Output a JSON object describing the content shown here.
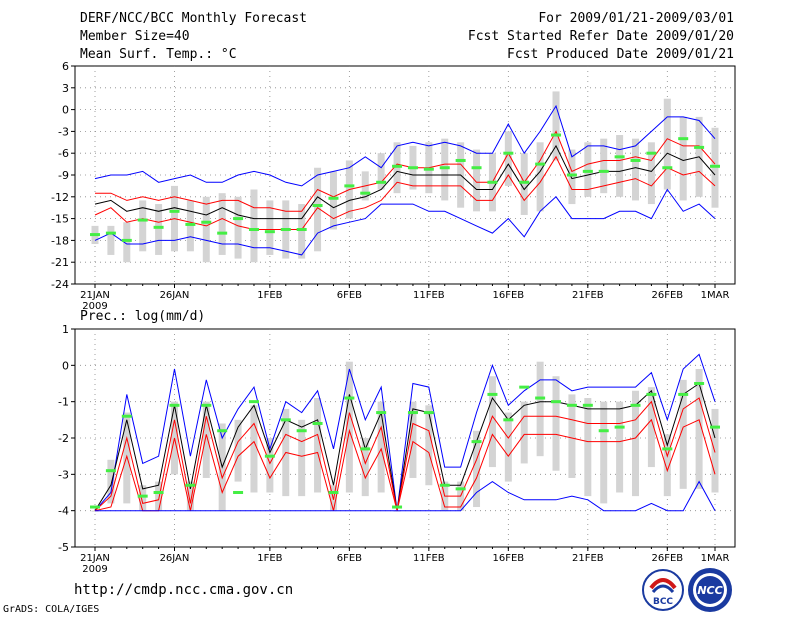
{
  "header": {
    "title": "DERF/NCC/BCC Monthly Forecast",
    "member_size": "Member Size=40",
    "var1": "Mean Surf. Temp.: °C",
    "period": "For 2009/01/21-2009/03/01",
    "started": "Fcst Started Refer Date 2009/01/20",
    "produced": "Fcst Produced Date 2009/01/21"
  },
  "panel2_title": "Prec.: log(mm/d)",
  "footer": {
    "url": "http://cmdp.ncc.cma.gov.cn",
    "credit": "GrADS: COLA/IGES",
    "logo1_text": "BCC",
    "logo2_text": "NCC"
  },
  "chart_data": [
    {
      "type": "line",
      "title": "Mean Surf. Temp.: °C",
      "x_tick_labels": [
        "21JAN",
        "26JAN",
        "1FEB",
        "6FEB",
        "11FEB",
        "16FEB",
        "21FEB",
        "26FEB",
        "1MAR"
      ],
      "x_tick_days": [
        0,
        5,
        11,
        16,
        21,
        26,
        31,
        36,
        39
      ],
      "x_year_label": "2009",
      "ylim": [
        -24,
        6
      ],
      "yticks": [
        6,
        3,
        0,
        -3,
        -6,
        -9,
        -12,
        -15,
        -18,
        -21,
        -24
      ],
      "series": [
        {
          "name": "max",
          "color": "#0000ff",
          "values": [
            -9.5,
            -9,
            -9,
            -8.5,
            -10,
            -9.5,
            -9,
            -10,
            -10,
            -9,
            -8.5,
            -9,
            -10,
            -10.5,
            -9,
            -8.5,
            -8,
            -6.5,
            -8,
            -5,
            -4.5,
            -5,
            -4.5,
            -5,
            -6,
            -6,
            -2,
            -6,
            -3,
            0.5,
            -6.5,
            -5,
            -5,
            -5.5,
            -5,
            -3,
            -1,
            -1,
            -1.5,
            -4
          ]
        },
        {
          "name": "upper",
          "color": "#ff0000",
          "values": [
            -11.5,
            -11.5,
            -12.5,
            -12,
            -12.5,
            -12,
            -12.5,
            -13,
            -12.5,
            -12.5,
            -13.5,
            -13.5,
            -14,
            -14,
            -11,
            -12,
            -11,
            -10.5,
            -10,
            -7.5,
            -8,
            -8,
            -7.5,
            -7.5,
            -10,
            -10,
            -6,
            -10,
            -7,
            -3,
            -8.5,
            -7.5,
            -7,
            -7,
            -6.5,
            -7,
            -4,
            -5,
            -5,
            -7.5
          ]
        },
        {
          "name": "mean",
          "color": "#000000",
          "values": [
            -13,
            -12.5,
            -14,
            -13.5,
            -14,
            -13.5,
            -14,
            -14.5,
            -13.5,
            -14.5,
            -15,
            -15,
            -15,
            -15,
            -12,
            -13.5,
            -12.5,
            -12,
            -11,
            -8.5,
            -9,
            -9,
            -9,
            -9,
            -11,
            -11,
            -7.5,
            -11,
            -8.5,
            -5,
            -9.5,
            -9,
            -8.5,
            -8.5,
            -8,
            -8.5,
            -6,
            -7,
            -6.5,
            -9
          ]
        },
        {
          "name": "lower",
          "color": "#ff0000",
          "values": [
            -14.5,
            -13.5,
            -15.5,
            -15,
            -15.5,
            -15,
            -15.5,
            -16,
            -15,
            -16,
            -16.5,
            -16.5,
            -16.5,
            -16.5,
            -13.5,
            -15,
            -14,
            -13.5,
            -12.5,
            -10,
            -10.5,
            -10.5,
            -10.5,
            -10.5,
            -12.5,
            -12.5,
            -9,
            -12.5,
            -10,
            -6.5,
            -11,
            -11,
            -10.5,
            -10,
            -9.5,
            -10.5,
            -8,
            -9,
            -8.5,
            -10.5
          ]
        },
        {
          "name": "min",
          "color": "#0000ff",
          "values": [
            -18,
            -17,
            -18.5,
            -18.5,
            -18,
            -18,
            -17.5,
            -18,
            -18.5,
            -18.5,
            -19,
            -19,
            -19.5,
            -20,
            -17,
            -16,
            -15.5,
            -15,
            -13,
            -13,
            -13,
            -14,
            -14,
            -15,
            -16,
            -17,
            -15,
            -17.5,
            -14,
            -12,
            -15,
            -15,
            -15,
            -14,
            -14,
            -15,
            -11,
            -14,
            -13,
            -15
          ]
        }
      ],
      "boxes": {
        "color": "#d4d4d4",
        "high": [
          -16,
          -16,
          -15.5,
          -12.5,
          -13,
          -10.5,
          -12.5,
          -12,
          -11.5,
          -12,
          -11,
          -12.5,
          -12.5,
          -13,
          -8,
          -8.5,
          -7,
          -8.5,
          -6,
          -4.5,
          -5,
          -4.5,
          -4,
          -4.5,
          -5.5,
          -6,
          -3,
          -6,
          -4.5,
          2.5,
          -5.5,
          -4.5,
          -4,
          -3.5,
          -4,
          -4.5,
          1.5,
          -1,
          -1,
          -2.5
        ],
        "low": [
          -18.5,
          -20,
          -21,
          -19.5,
          -20,
          -19.5,
          -19.5,
          -21,
          -20,
          -20.5,
          -21,
          -20,
          -20.5,
          -20.5,
          -19.5,
          -16.5,
          -15,
          -12.5,
          -11,
          -11.5,
          -11,
          -11.5,
          -12.5,
          -13.5,
          -14,
          -14,
          -10.5,
          -14.5,
          -14,
          -7,
          -13,
          -12,
          -11.5,
          -12,
          -12.5,
          -13,
          -11,
          -12.5,
          -12,
          -13.5
        ]
      },
      "markers": {
        "color": "#44ee44",
        "values": [
          -17.2,
          -17,
          -18,
          -15.2,
          -16.2,
          -14,
          -15.8,
          -15.5,
          -17,
          -15,
          -16.5,
          -16.8,
          -16.5,
          -16.5,
          -13.2,
          -12.2,
          -10.5,
          -11.5,
          -10,
          -7.8,
          -8,
          -8.2,
          -8,
          -7,
          -8,
          -10,
          -6,
          -10,
          -7.5,
          -3.5,
          -9,
          -8.5,
          -8.5,
          -6.5,
          -7,
          -6,
          -8,
          -4,
          -5.2,
          -7.8
        ]
      }
    },
    {
      "type": "line",
      "title": "Prec.: log(mm/d)",
      "x_tick_labels": [
        "21JAN",
        "26JAN",
        "1FEB",
        "6FEB",
        "11FEB",
        "16FEB",
        "21FEB",
        "26FEB",
        "1MAR"
      ],
      "x_tick_days": [
        0,
        5,
        11,
        16,
        21,
        26,
        31,
        36,
        39
      ],
      "x_year_label": "2009",
      "ylim": [
        -5,
        1
      ],
      "yticks": [
        1,
        0,
        -1,
        -2,
        -3,
        -4,
        -5
      ],
      "series": [
        {
          "name": "max",
          "color": "#0000ff",
          "values": [
            -4,
            -3.5,
            -0.8,
            -2.7,
            -2.5,
            -0.1,
            -2.5,
            -0.4,
            -2,
            -1.2,
            -0.6,
            -2.3,
            -1,
            -1.3,
            -0.7,
            -2.3,
            -0.1,
            -1.5,
            -0.6,
            -4,
            -0.5,
            -0.6,
            -2.8,
            -2.8,
            -1.3,
            0,
            -1.1,
            -0.7,
            -0.4,
            -0.4,
            -0.7,
            -0.6,
            -0.6,
            -0.6,
            -0.6,
            -0.2,
            -1.5,
            -0.1,
            0.3,
            -1
          ]
        },
        {
          "name": "upper",
          "color": "#000000",
          "values": [
            -4,
            -3.3,
            -1.5,
            -3.4,
            -3.3,
            -1.1,
            -3.4,
            -1.1,
            -2.8,
            -1.7,
            -1.1,
            -2.4,
            -1.5,
            -1.7,
            -1.5,
            -3.3,
            -0.8,
            -2.3,
            -1.3,
            -4,
            -1.2,
            -1.3,
            -3.3,
            -3.3,
            -2.1,
            -0.9,
            -1.5,
            -1.1,
            -1,
            -1,
            -1.1,
            -1.2,
            -1.2,
            -1.2,
            -1.1,
            -0.7,
            -2.2,
            -0.8,
            -0.5,
            -2
          ]
        },
        {
          "name": "u2",
          "color": "#ff0000",
          "values": [
            -4,
            -3.6,
            -2,
            -3.8,
            -3.7,
            -1.5,
            -3.8,
            -1.4,
            -3.1,
            -2.1,
            -1.6,
            -2.7,
            -1.9,
            -2.1,
            -1.9,
            -3.7,
            -1.3,
            -2.7,
            -1.7,
            -4,
            -1.6,
            -1.8,
            -3.6,
            -3.6,
            -2.6,
            -1.4,
            -2,
            -1.4,
            -1.4,
            -1.4,
            -1.5,
            -1.6,
            -1.6,
            -1.6,
            -1.5,
            -1,
            -2.5,
            -1.2,
            -0.9,
            -2.4
          ]
        },
        {
          "name": "lower",
          "color": "#ff0000",
          "values": [
            -4,
            -3.9,
            -2.5,
            -4,
            -4,
            -2,
            -4,
            -1.9,
            -3.5,
            -2.5,
            -2.1,
            -3.1,
            -2.4,
            -2.5,
            -2.4,
            -4,
            -1.8,
            -3.1,
            -2.3,
            -4,
            -2.1,
            -2.4,
            -3.9,
            -3.9,
            -3.1,
            -1.9,
            -2.5,
            -1.9,
            -1.9,
            -1.9,
            -2,
            -2.1,
            -2.1,
            -2.1,
            -2,
            -1.5,
            -2.9,
            -1.7,
            -1.5,
            -3
          ]
        },
        {
          "name": "min",
          "color": "#0000ff",
          "values": [
            -4,
            -4,
            -4,
            -4,
            -4,
            -4,
            -4,
            -4,
            -4,
            -4,
            -4,
            -4,
            -4,
            -4,
            -4,
            -4,
            -4,
            -4,
            -4,
            -4,
            -4,
            -4,
            -4,
            -4,
            -3.5,
            -3.2,
            -3.5,
            -3.7,
            -3.7,
            -3.7,
            -3.6,
            -3.7,
            -4,
            -4,
            -4,
            -3.8,
            -4,
            -4,
            -3.2,
            -4
          ]
        }
      ],
      "boxes": {
        "color": "#d4d4d4",
        "high": [
          -4,
          -2.6,
          -1.3,
          -3.3,
          -3.2,
          -1,
          -3.2,
          -1,
          -1.6,
          -1.5,
          -1.1,
          -2,
          -1.2,
          -1.5,
          -0.9,
          -3.3,
          0.1,
          -2,
          -1,
          -4,
          -1,
          -1.1,
          -3.2,
          -3.2,
          -1.8,
          -0.3,
          -1.3,
          -1,
          0.1,
          -0.3,
          -0.8,
          -0.9,
          -1,
          -1,
          -0.7,
          -0.6,
          -1.9,
          -0.4,
          -0.1,
          -1.2
        ],
        "low": [
          -4,
          -3.8,
          -3.8,
          -4,
          -4,
          -3,
          -4,
          -3.1,
          -4,
          -3.2,
          -3.5,
          -3.5,
          -3.6,
          -3.6,
          -3.5,
          -4,
          -3.5,
          -3.6,
          -3.5,
          -4,
          -3.1,
          -3.3,
          -4,
          -4,
          -3.9,
          -2.8,
          -3.2,
          -2.7,
          -2.5,
          -2.9,
          -3.1,
          -3.6,
          -3.8,
          -3.5,
          -3.6,
          -2.8,
          -3.6,
          -3.4,
          -3.4,
          -3.5
        ]
      },
      "markers": {
        "color": "#44ee44",
        "values": [
          -3.9,
          -2.9,
          -1.4,
          -3.6,
          -3.5,
          -1.1,
          -3.3,
          -1.1,
          -1.8,
          -3.5,
          -1,
          -2.5,
          -1.5,
          -1.8,
          -1.6,
          -3.5,
          -0.9,
          -2.3,
          -1.3,
          -3.9,
          -1.3,
          -1.3,
          -3.3,
          -3.4,
          -2.1,
          -0.8,
          -1.5,
          -0.6,
          -0.9,
          -1,
          -1.1,
          -1.1,
          -1.8,
          -1.7,
          -1.1,
          -0.8,
          -2.3,
          -0.8,
          -0.5,
          -1.7
        ]
      }
    }
  ]
}
